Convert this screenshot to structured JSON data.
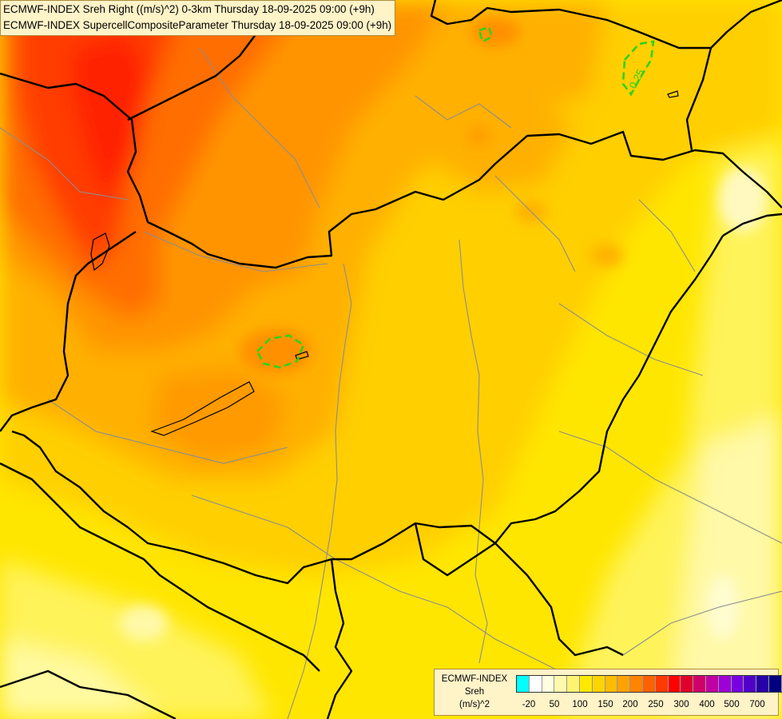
{
  "header": {
    "line1": "ECMWF-INDEX Sreh Right ((m/s)^2) 0-3km Thursday 18-09-2025 09:00 (+9h)",
    "line2": "ECMWF-INDEX SupercellCompositeParameter Thursday 18-09-2025 09:00 (+9h)"
  },
  "contour": {
    "label": "0.25",
    "color": "#2ed21e"
  },
  "legend": {
    "model": "ECMWF-INDEX",
    "parameter": "Sreh",
    "unit": "(m/s)^2",
    "ticks": [
      "-20",
      "50",
      "100",
      "150",
      "200",
      "250",
      "300",
      "400",
      "500",
      "700"
    ],
    "colors": [
      "#00ffff",
      "#ffffff",
      "#fffee0",
      "#fff9b0",
      "#fff470",
      "#ffe900",
      "#ffd400",
      "#ffbc00",
      "#ffa200",
      "#ff8400",
      "#ff6100",
      "#ff3a00",
      "#ff0000",
      "#e0002c",
      "#d0006a",
      "#c000a4",
      "#9e00d6",
      "#7800e0",
      "#5000c8",
      "#2800a8",
      "#000080"
    ]
  }
}
